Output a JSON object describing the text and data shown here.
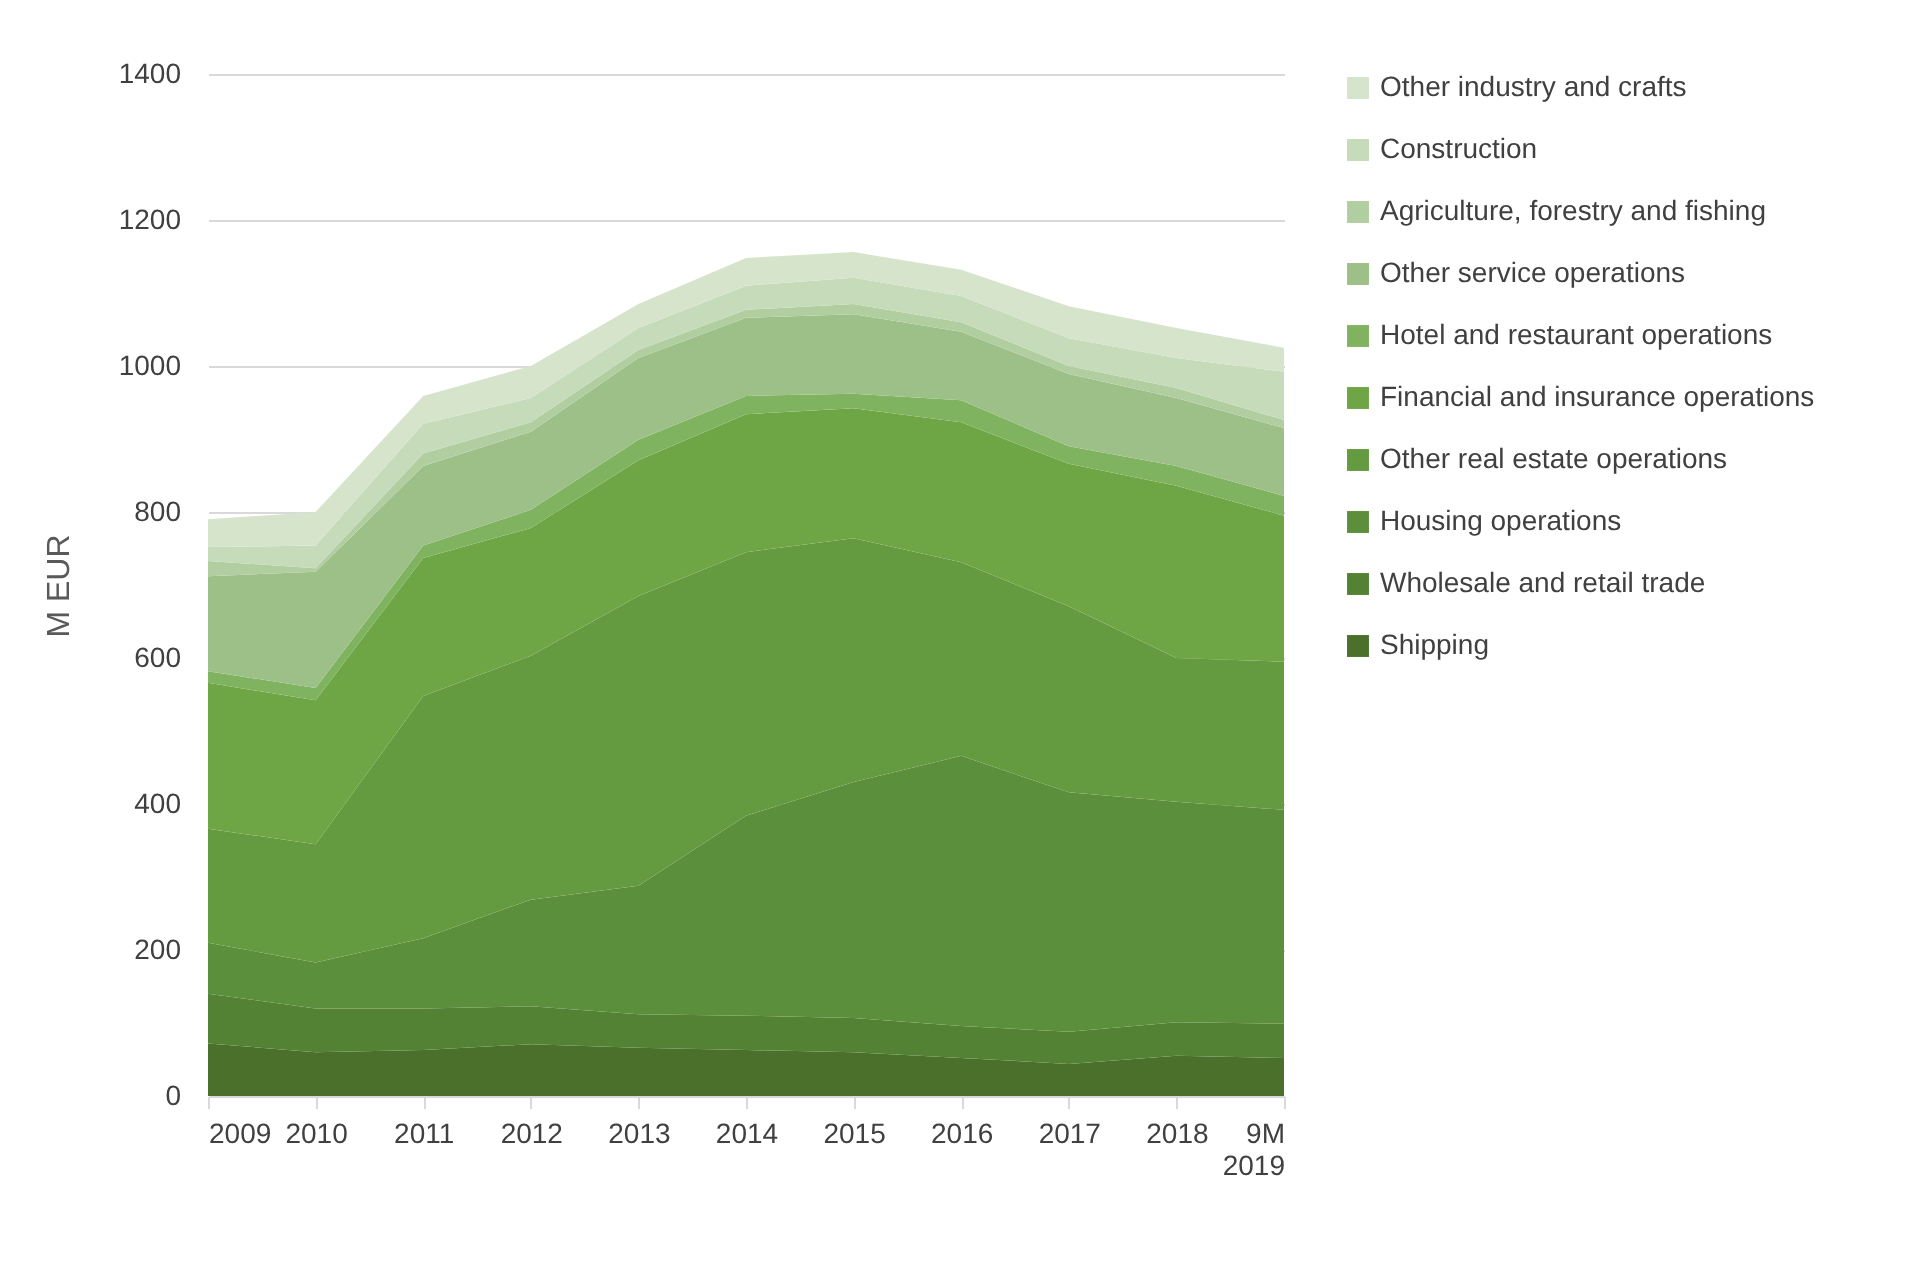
{
  "chart_data": {
    "type": "area",
    "stacked": true,
    "ylabel": "M EUR",
    "categories": [
      "2009",
      "2010",
      "2011",
      "2012",
      "2013",
      "2014",
      "2015",
      "2016",
      "2017",
      "2018",
      "9M 2019"
    ],
    "ylim": [
      0,
      1400
    ],
    "yticks": [
      0,
      200,
      400,
      600,
      800,
      1000,
      1200,
      1400
    ],
    "grid": "y",
    "legend": "right",
    "series": [
      {
        "name": "Shipping",
        "color": "#4a702b",
        "values": [
          72,
          60,
          63,
          71,
          66,
          63,
          60,
          52,
          44,
          55,
          52
        ]
      },
      {
        "name": "Wholesale and retail trade",
        "color": "#548235",
        "values": [
          68,
          60,
          57,
          52,
          46,
          47,
          47,
          44,
          44,
          46,
          47
        ]
      },
      {
        "name": "Housing operations",
        "color": "#5c8f3b",
        "values": [
          70,
          63,
          96,
          146,
          176,
          274,
          323,
          370,
          328,
          302,
          293
        ]
      },
      {
        "name": "Other real estate operations",
        "color": "#659b40",
        "values": [
          156,
          162,
          332,
          334,
          397,
          361,
          334,
          265,
          255,
          197,
          203
        ]
      },
      {
        "name": "Financial and insurance operations",
        "color": "#6ea645",
        "values": [
          200,
          197,
          189,
          175,
          186,
          189,
          178,
          192,
          195,
          236,
          200
        ]
      },
      {
        "name": "Hotel and restaurant operations",
        "color": "#80b35f",
        "values": [
          16,
          17,
          17,
          25,
          28,
          25,
          20,
          30,
          24,
          27,
          27
        ]
      },
      {
        "name": "Other service operations",
        "color": "#9dc089",
        "values": [
          130,
          159,
          109,
          107,
          112,
          107,
          109,
          94,
          99,
          93,
          93
        ]
      },
      {
        "name": "Agriculture, forestry and fishing",
        "color": "#b1cea1",
        "values": [
          21,
          5,
          17,
          13,
          11,
          11,
          14,
          13,
          11,
          14,
          11
        ]
      },
      {
        "name": "Construction",
        "color": "#c6dbb9",
        "values": [
          19,
          31,
          41,
          33,
          30,
          33,
          36,
          36,
          38,
          41,
          66
        ]
      },
      {
        "name": "Other industry and crafts",
        "color": "#d6e4cc",
        "values": [
          38,
          46,
          38,
          44,
          33,
          38,
          35,
          36,
          44,
          41,
          33
        ]
      }
    ]
  }
}
